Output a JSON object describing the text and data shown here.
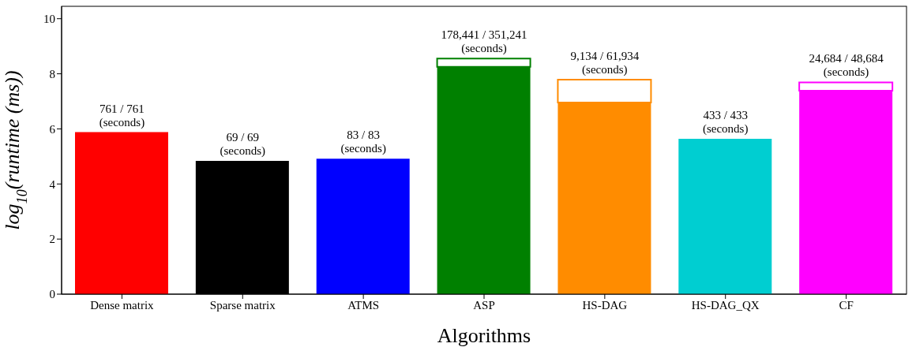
{
  "chart_data": {
    "type": "bar",
    "stacked": true,
    "xlabel": "Algorithms",
    "ylabel": "log$_{10}$(runtime (ms))",
    "categories": [
      "Dense matrix",
      "Sparse matrix",
      "ATMS",
      "ASP",
      "HS-DAG",
      "HS-DAG_QX",
      "CF"
    ],
    "series": [
      {
        "colors": [
          "#ff0000",
          "#000000",
          "#0000ff",
          "#008000",
          "#ff8c00",
          "#00ced1",
          "#ff00ff"
        ],
        "values": [
          5.88,
          4.84,
          4.92,
          8.25,
          6.96,
          5.64,
          7.39
        ]
      },
      {
        "colors": [
          "#ffffff",
          "#ffffff",
          "#ffffff",
          "#ffffff",
          "#ffffff",
          "#ffffff",
          "#ffffff"
        ],
        "values": [
          0,
          0,
          0,
          0.3,
          0.83,
          0,
          0.3
        ]
      }
    ],
    "annotations": [
      {
        "text": "761 / 761\n(seconds)",
        "x": "Dense matrix",
        "y": 5.88
      },
      {
        "text": "69 / 69\n(seconds)",
        "x": "Sparse matrix",
        "y": 4.84
      },
      {
        "text": "83 / 83\n(seconds)",
        "x": "ATMS",
        "y": 4.92
      },
      {
        "text": "178,441 / 351,241\n(seconds)",
        "x": "ASP",
        "y": 8.55
      },
      {
        "text": "9,134 / 61,934\n(seconds)",
        "x": "HS-DAG",
        "y": 7.79
      },
      {
        "text": "433 / 433\n(seconds)",
        "x": "HS-DAG_QX",
        "y": 5.64
      },
      {
        "text": "24,684 / 48,684\n(seconds)",
        "x": "CF",
        "y": 7.69
      }
    ],
    "ylim": [
      0,
      10.45
    ],
    "yticks": [
      0,
      2,
      4,
      6,
      8,
      10
    ],
    "grid": false,
    "legend": false
  }
}
